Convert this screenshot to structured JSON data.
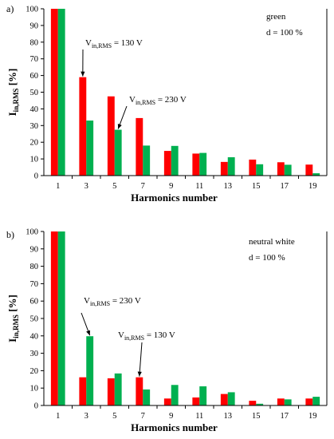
{
  "chart_data": [
    {
      "type": "bar",
      "panel_label": "a)",
      "categories": [
        "1",
        "3",
        "5",
        "7",
        "9",
        "11",
        "13",
        "15",
        "17",
        "19"
      ],
      "series": [
        {
          "values": [
            100,
            59,
            47.5,
            34.5,
            14.8,
            13.2,
            8.2,
            9.6,
            8.0,
            6.6
          ]
        },
        {
          "values": [
            100,
            33,
            27.5,
            18,
            17.8,
            13.6,
            11,
            6.8,
            6.5,
            1.4
          ]
        }
      ],
      "xlabel": "Harmonics number",
      "ylabel_main": "I",
      "ylabel_sub": "in,RMS",
      "ylabel_unit": " [%]",
      "ylim": [
        0,
        100
      ],
      "yticks": [
        0,
        10,
        20,
        30,
        40,
        50,
        60,
        70,
        80,
        90,
        100
      ],
      "notes": [
        "green",
        "d = 100 %"
      ],
      "annotations": [
        {
          "main": "V",
          "sub": "in,RMS",
          "rest": " = 130 V",
          "points_to": "3",
          "series_index": 0
        },
        {
          "main": "V",
          "sub": "in,RMS",
          "rest": " = 230 V",
          "points_to": "5",
          "series_index": 1
        }
      ],
      "colors": {
        "series_0": "#ff0000",
        "series_1": "#00b050"
      }
    },
    {
      "type": "bar",
      "panel_label": "b)",
      "categories": [
        "1",
        "3",
        "5",
        "7",
        "9",
        "11",
        "13",
        "15",
        "17",
        "19"
      ],
      "series": [
        {
          "values": [
            100,
            16.2,
            15.6,
            16.2,
            4.0,
            4.6,
            6.6,
            2.7,
            4.0,
            4.0
          ]
        },
        {
          "values": [
            100,
            39.8,
            18.4,
            9.2,
            11.8,
            11,
            7.6,
            1.0,
            3.5,
            5.0
          ]
        }
      ],
      "xlabel": "Harmonics number",
      "ylabel_main": "I",
      "ylabel_sub": "in,RMS",
      "ylabel_unit": " [%]",
      "ylim": [
        0,
        100
      ],
      "yticks": [
        0,
        10,
        20,
        30,
        40,
        50,
        60,
        70,
        80,
        90,
        100
      ],
      "notes": [
        "neutral white",
        "d = 100 %"
      ],
      "annotations": [
        {
          "main": "V",
          "sub": "in,RMS",
          "rest": " = 230 V",
          "points_to": "3",
          "series_index": 1
        },
        {
          "main": "V",
          "sub": "in,RMS",
          "rest": " = 130 V",
          "points_to": "7",
          "series_index": 0
        }
      ],
      "colors": {
        "series_0": "#ff0000",
        "series_1": "#00b050"
      }
    }
  ]
}
